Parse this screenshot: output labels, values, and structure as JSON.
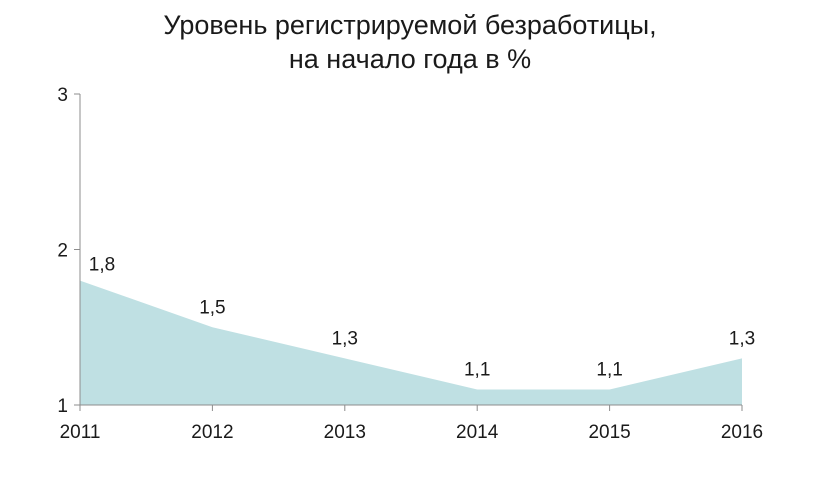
{
  "chart_data": {
    "type": "area",
    "title_lines": [
      "Уровень регистрируемой безработицы,",
      "на начало года в %"
    ],
    "categories": [
      "2011",
      "2012",
      "2013",
      "2014",
      "2015",
      "2016"
    ],
    "values": [
      1.8,
      1.5,
      1.3,
      1.1,
      1.1,
      1.3
    ],
    "data_labels": [
      "1,8",
      "1,5",
      "1,3",
      "1,1",
      "1,1",
      "1,3"
    ],
    "y_ticks": [
      1,
      2,
      3
    ],
    "y_tick_labels": [
      "1",
      "2",
      "3"
    ],
    "ylim": [
      1,
      3
    ],
    "grid": false,
    "legend": "none",
    "fill_color": "#bfe0e3"
  }
}
